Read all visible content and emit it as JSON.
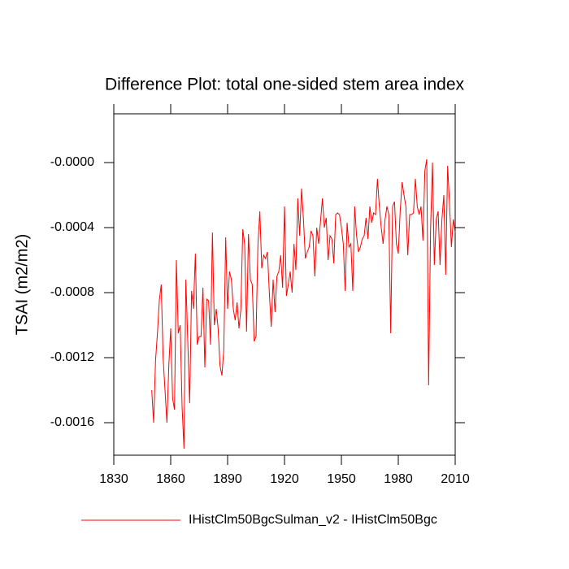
{
  "chart_data": {
    "type": "line",
    "title": "Difference Plot: total one-sided stem area index",
    "y_label": "TSAI  (m2/m2)",
    "x": [
      1850,
      1851,
      1852,
      1853,
      1854,
      1855,
      1856,
      1857,
      1858,
      1859,
      1860,
      1861,
      1862,
      1863,
      1864,
      1865,
      1866,
      1867,
      1868,
      1869,
      1870,
      1871,
      1872,
      1873,
      1874,
      1875,
      1876,
      1877,
      1878,
      1879,
      1880,
      1881,
      1882,
      1883,
      1884,
      1885,
      1886,
      1887,
      1888,
      1889,
      1890,
      1891,
      1892,
      1893,
      1894,
      1895,
      1896,
      1897,
      1898,
      1899,
      1900,
      1901,
      1902,
      1903,
      1904,
      1905,
      1906,
      1907,
      1908,
      1909,
      1910,
      1911,
      1912,
      1913,
      1914,
      1915,
      1916,
      1917,
      1918,
      1919,
      1920,
      1921,
      1922,
      1923,
      1924,
      1925,
      1926,
      1927,
      1928,
      1929,
      1930,
      1931,
      1932,
      1933,
      1934,
      1935,
      1936,
      1937,
      1938,
      1939,
      1940,
      1941,
      1942,
      1943,
      1944,
      1945,
      1946,
      1947,
      1948,
      1949,
      1950,
      1951,
      1952,
      1953,
      1954,
      1955,
      1956,
      1957,
      1958,
      1959,
      1960,
      1961,
      1962,
      1963,
      1964,
      1965,
      1966,
      1967,
      1968,
      1969,
      1970,
      1971,
      1972,
      1973,
      1974,
      1975,
      1976,
      1977,
      1978,
      1979,
      1980,
      1981,
      1982,
      1983,
      1984,
      1985,
      1986,
      1987,
      1988,
      1989,
      1990,
      1991,
      1992,
      1993,
      1994,
      1995,
      1996,
      1997,
      1998,
      1999,
      2000,
      2001,
      2002,
      2003,
      2004,
      2005,
      2006,
      2007,
      2008,
      2009,
      2010
    ],
    "series": [
      {
        "name": "IHistClm50BgcSulman_v2 - IHistClm50Bgc",
        "color": "#ff0000",
        "values": [
          -0.0014,
          -0.0016,
          -0.00122,
          -0.00105,
          -0.00085,
          -0.00075,
          -0.0012,
          -0.0014,
          -0.0016,
          -0.00125,
          -0.00102,
          -0.00145,
          -0.00152,
          -0.0006,
          -0.00105,
          -0.001,
          -0.0015,
          -0.00176,
          -0.00072,
          -0.0011,
          -0.00148,
          -0.00079,
          -0.0009,
          -0.00056,
          -0.00112,
          -0.00107,
          -0.00107,
          -0.00077,
          -0.00126,
          -0.00084,
          -0.00085,
          -0.00112,
          -0.00043,
          -0.001,
          -0.0009,
          -0.00102,
          -0.00125,
          -0.00131,
          -0.00115,
          -0.00046,
          -0.0009,
          -0.00067,
          -0.00072,
          -0.0009,
          -0.00097,
          -0.00086,
          -0.00102,
          -0.0009,
          -0.00041,
          -0.0005,
          -0.00104,
          -0.00044,
          -0.00072,
          -0.00075,
          -0.0011,
          -0.00107,
          -0.0005,
          -0.0003,
          -0.00065,
          -0.00057,
          -0.00059,
          -0.00055,
          -0.0008,
          -0.00101,
          -0.00072,
          -0.00092,
          -0.0007,
          -0.00067,
          -0.00057,
          -0.00077,
          -0.00027,
          -0.00082,
          -0.00075,
          -0.00067,
          -0.0008,
          -0.0005,
          -0.00066,
          -0.00022,
          -0.00045,
          -0.00016,
          -0.00035,
          -0.00059,
          -0.00055,
          -0.00052,
          -0.00042,
          -0.00045,
          -0.0007,
          -0.0004,
          -0.0005,
          -0.00036,
          -0.00022,
          -0.0004,
          -0.00034,
          -0.0006,
          -0.00045,
          -0.00047,
          -0.00062,
          -0.00032,
          -0.00031,
          -0.00032,
          -0.0004,
          -0.0005,
          -0.00079,
          -0.00037,
          -0.00052,
          -0.0005,
          -0.00079,
          -0.00027,
          -0.00045,
          -0.00055,
          -0.00052,
          -0.00047,
          -0.00045,
          -0.00034,
          -0.00047,
          -0.00027,
          -0.00037,
          -0.00031,
          -0.00032,
          -0.0001,
          -0.00027,
          -0.0004,
          -0.0005,
          -0.00035,
          -0.00027,
          -0.00032,
          -0.00105,
          -0.00027,
          -0.00024,
          -0.0005,
          -0.00056,
          -0.0003,
          -0.00012,
          -0.0002,
          -0.00027,
          -0.00057,
          -0.00032,
          -0.00032,
          -0.00031,
          -0.0001,
          -0.00027,
          -0.00032,
          -0.00027,
          -0.00048,
          -5e-05,
          2e-05,
          -0.00137,
          -0.00042,
          0,
          -0.00063,
          -0.00035,
          -0.0003,
          -0.00063,
          -0.00035,
          -0.0002,
          -0.00069,
          -2e-05,
          -0.00025,
          -0.00052,
          -0.00035,
          -0.00043
        ]
      }
    ],
    "xlim": [
      1830,
      2010
    ],
    "xticks": [
      1830,
      1860,
      1890,
      1920,
      1950,
      1980,
      2010
    ],
    "ylim": [
      -0.0018,
      0.0003
    ],
    "yticks": [
      -0.0016,
      -0.0012,
      -0.0008,
      -0.0004,
      {
        "value": 0,
        "label": "-0.0000"
      }
    ],
    "legend": "bottom"
  }
}
